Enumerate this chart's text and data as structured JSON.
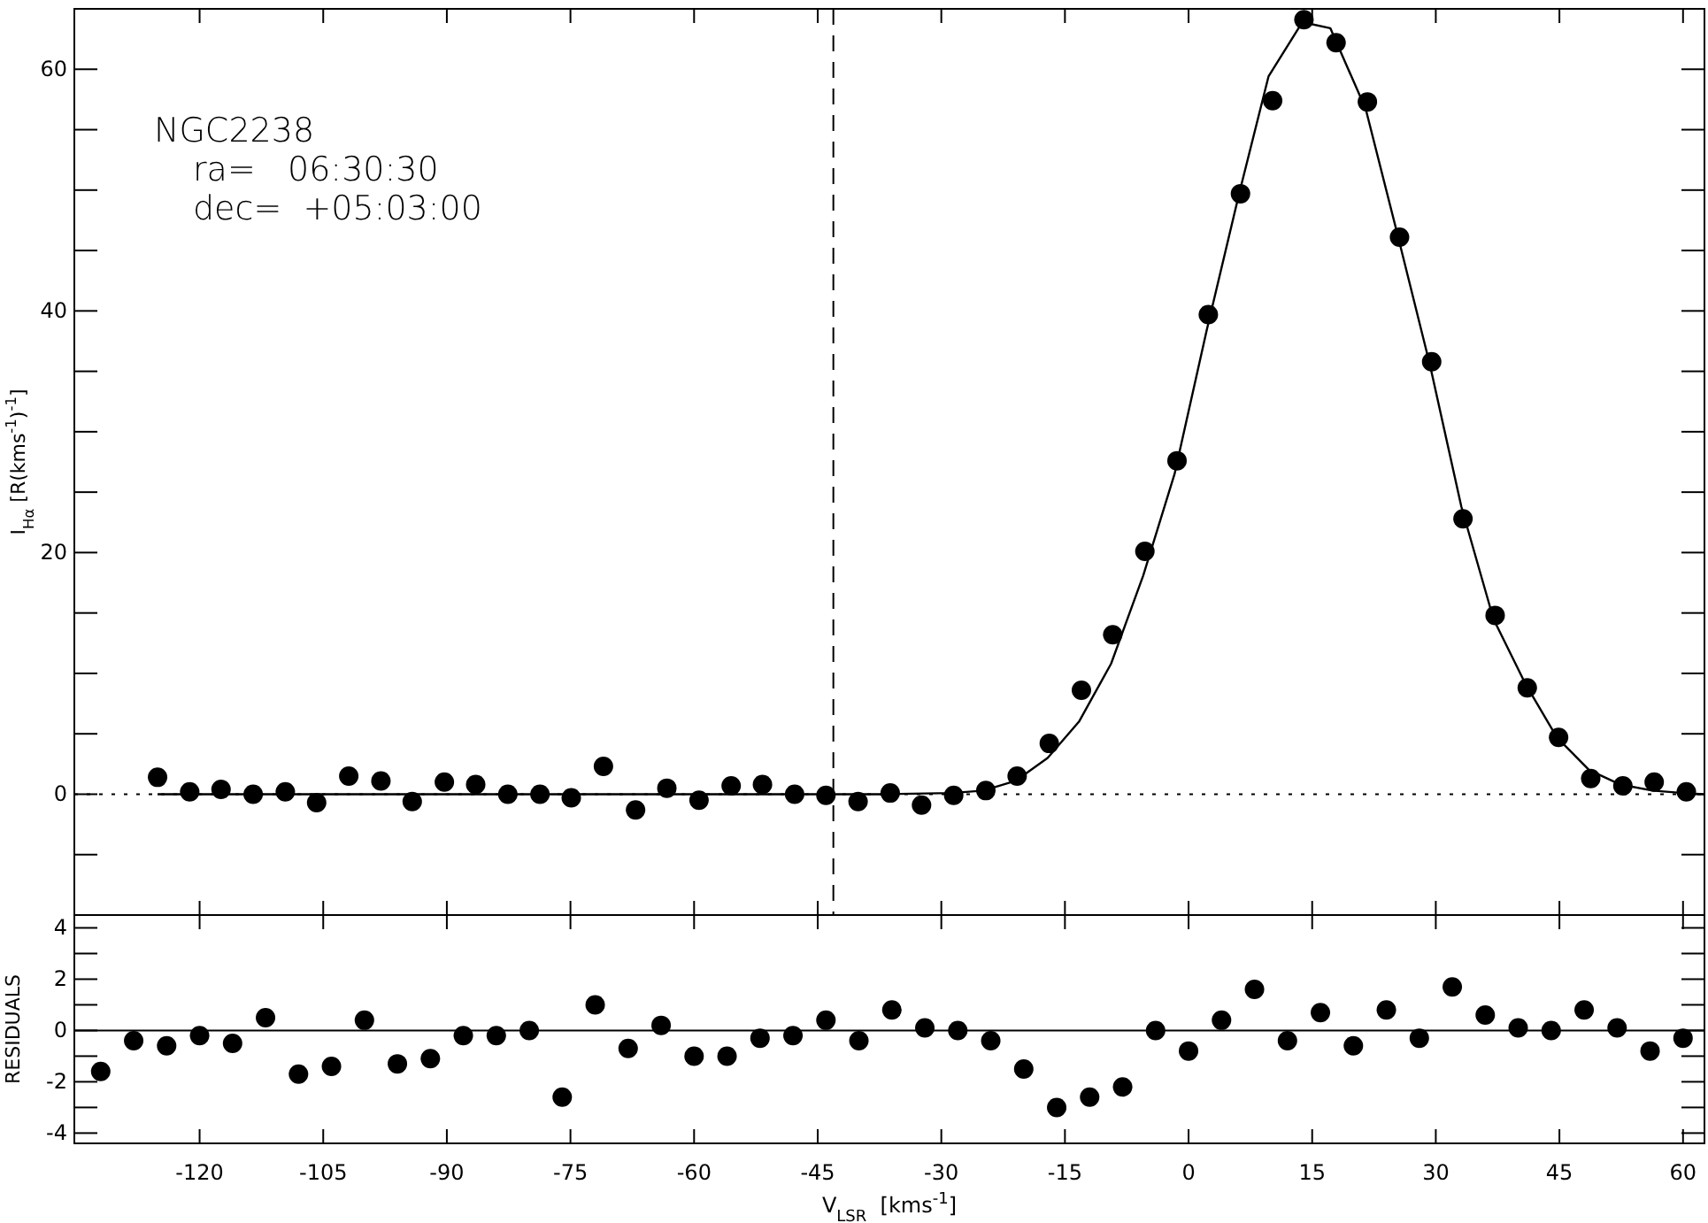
{
  "chart_data": [
    {
      "type": "scatter",
      "ylabel": "I$_{Hα}$ [R(kms$^{-1}$)$^{-1}$]",
      "annotations": [
        "NGC2238",
        "ra=   06:30:30",
        "dec=  +05:03:00"
      ],
      "xlim": [
        -135.2,
        62.6
      ],
      "xticks": [
        {
          "value": -120,
          "label": null
        },
        {
          "value": -105,
          "label": null
        },
        {
          "value": -90,
          "label": null
        },
        {
          "value": -75,
          "label": null
        },
        {
          "value": -60,
          "label": null
        },
        {
          "value": -45,
          "label": null
        },
        {
          "value": -30,
          "label": null
        },
        {
          "value": -15,
          "label": null
        },
        {
          "value": 0,
          "label": null
        },
        {
          "value": 15,
          "label": null
        },
        {
          "value": 30,
          "label": null
        },
        {
          "value": 45,
          "label": null
        },
        {
          "value": 60,
          "label": null
        }
      ],
      "ylim": [
        -10,
        65
      ],
      "yticks": [
        {
          "value": -5,
          "label": null
        },
        0,
        {
          "value": 5,
          "label": null
        },
        {
          "value": 10,
          "label": null
        },
        {
          "value": 15,
          "label": null
        },
        20,
        {
          "value": 25,
          "label": null
        },
        {
          "value": 30,
          "label": null
        },
        {
          "value": 35,
          "label": null
        },
        40,
        {
          "value": 45,
          "label": null
        },
        {
          "value": 50,
          "label": null
        },
        {
          "value": 55,
          "label": null
        },
        60
      ],
      "tick_labels": "y",
      "marker": "circle",
      "grid": false,
      "x": [
        -125.1,
        -121.2,
        -117.4,
        -113.5,
        -109.6,
        -105.8,
        -101.9,
        -98.0,
        -94.2,
        -90.3,
        -86.5,
        -82.6,
        -78.7,
        -74.9,
        -71.0,
        -67.1,
        -63.3,
        -59.4,
        -55.5,
        -51.7,
        -47.8,
        -44.0,
        -40.1,
        -36.2,
        -32.4,
        -28.5,
        -24.6,
        -20.8,
        -16.9,
        -13.0,
        -9.2,
        -5.3,
        -1.4,
        2.4,
        6.3,
        10.2,
        14.0,
        17.9,
        21.7,
        25.6,
        29.5,
        33.3,
        37.2,
        41.1,
        44.9,
        48.8,
        52.7,
        56.5,
        60.4
      ],
      "series": [
        {
          "color": "#000000",
          "values": [
            1.4,
            0.2,
            0.4,
            0,
            0.2,
            -0.7,
            1.5,
            1.1,
            -0.6,
            1.0,
            0.8,
            0,
            0,
            -0.3,
            2.3,
            -1.3,
            0.5,
            -0.5,
            0.7,
            0.8,
            0,
            -0.1,
            -0.6,
            0.1,
            -0.9,
            -0.1,
            0.3,
            1.5,
            4.2,
            8.6,
            13.2,
            20.1,
            27.6,
            39.7,
            49.7,
            57.4,
            64.1,
            62.2,
            57.3,
            46.1,
            35.8,
            22.8,
            14.8,
            8.8,
            4.7,
            1.3,
            0.7,
            1.0,
            0.2
          ]
        },
        {
          "type": "line",
          "color": "#000000",
          "line_style": "solid",
          "marker": "none",
          "x": [
            -125.1,
            -36.9,
            -28.7,
            -24.9,
            -21.0,
            -17.1,
            -13.3,
            -9.4,
            -5.5,
            -1.7,
            2.2,
            6.1,
            9.7,
            13.8,
            17.2,
            21.5,
            25.4,
            29.3,
            33.1,
            37.0,
            40.9,
            44.7,
            48.6,
            52.4,
            56.3,
            60.0,
            62.5
          ],
          "values": [
            0,
            0,
            0.1,
            0.3,
            1.1,
            3.0,
            6.0,
            10.8,
            18.1,
            26.5,
            38.4,
            49.6,
            59.4,
            63.9,
            63.4,
            56.7,
            46.2,
            35.5,
            23.8,
            14.5,
            9.1,
            4.7,
            2.0,
            0.8,
            0.3,
            0.1,
            0
          ]
        }
      ],
      "ref_lines": [
        {
          "axis": "x",
          "value": -43.1,
          "line_style": "dashed",
          "color": "#000000"
        },
        {
          "axis": "y",
          "value": 0,
          "line_style": "dotted",
          "color": "#000000"
        }
      ]
    },
    {
      "type": "scatter",
      "xlabel": "V$_{LSR}$  [kms$^{-1}$]",
      "ylabel": "RESIDUALS",
      "xlim": [
        -135.2,
        62.6
      ],
      "xticks": [
        -120,
        -105,
        -90,
        -75,
        -60,
        -45,
        -30,
        -15,
        0,
        15,
        30,
        45,
        60
      ],
      "ylim": [
        -4.4,
        4.5
      ],
      "yticks": [
        -4,
        {
          "value": -3,
          "label": null
        },
        -2,
        {
          "value": -1,
          "label": null
        },
        0,
        {
          "value": 1,
          "label": null
        },
        2,
        {
          "value": 3,
          "label": null
        },
        4
      ],
      "marker": "circle",
      "grid": false,
      "x": [
        -132,
        -128,
        -124,
        -120,
        -116,
        -112,
        -108,
        -104,
        -100,
        -96,
        -92,
        -88,
        -84,
        -80,
        -76,
        -72,
        -68,
        -64,
        -60,
        -56,
        -52,
        -48,
        -44,
        -40,
        -36,
        -32,
        -28,
        -24,
        -20,
        -16,
        -12,
        -8,
        -4,
        0,
        4,
        8,
        12,
        16,
        20,
        24,
        28,
        32,
        36,
        40,
        44,
        48,
        52,
        56,
        60
      ],
      "series": [
        {
          "color": "#000000",
          "values": [
            -1.6,
            -0.4,
            -0.6,
            -0.2,
            -0.5,
            0.5,
            -1.7,
            -1.4,
            0.4,
            -1.3,
            -1.1,
            -0.2,
            -0.2,
            0.0,
            -2.6,
            1.0,
            -0.7,
            0.2,
            -1.0,
            -1.0,
            -0.3,
            -0.2,
            0.4,
            -0.4,
            0.8,
            0.1,
            0.0,
            -0.4,
            -1.5,
            -3.0,
            -2.6,
            -2.2,
            0.0,
            -0.8,
            0.4,
            1.6,
            -0.4,
            0.7,
            -0.6,
            0.8,
            -0.3,
            1.7,
            0.6,
            0.1,
            0.0,
            0.8,
            0.1,
            -0.8,
            -0.3
          ]
        }
      ],
      "ref_lines": [
        {
          "axis": "y",
          "value": 0,
          "line_style": "solid",
          "color": "#000000"
        }
      ]
    }
  ]
}
